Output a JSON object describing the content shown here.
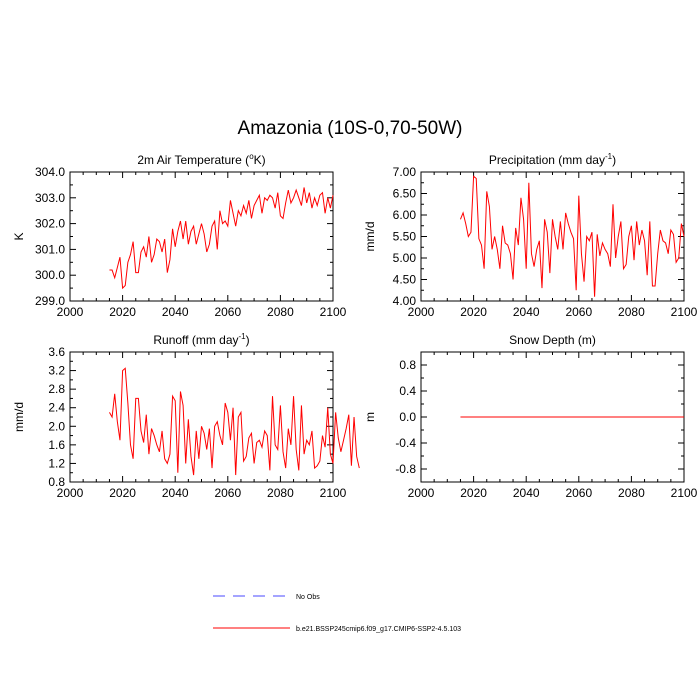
{
  "figure_title": "Amazonia (10S-0,70-50W)",
  "legend": {
    "obs_label": "No Obs",
    "obs_color": "#4a4aff",
    "model_label": "b.e21.BSSP245cmip6.f09_g17.CMIP6-SSP2-4.5.103",
    "model_color": "#ff0000"
  },
  "chart_data": [
    {
      "type": "line",
      "title": "2m Air Temperature (",
      "title_sup": "o",
      "title_tail": "K)",
      "ylabel": "K",
      "xlim": [
        2000,
        2100
      ],
      "ylim": [
        299,
        304
      ],
      "xticks": [
        "2000",
        "2020",
        "2040",
        "2060",
        "2080",
        "2100"
      ],
      "yticks": [
        "299.0",
        "300.0",
        "301.0",
        "302.0",
        "303.0",
        "304.0"
      ],
      "x_start": 2015,
      "values": [
        300.2,
        300.2,
        299.9,
        300.3,
        300.7,
        299.5,
        299.6,
        300.5,
        300.8,
        301.3,
        300.1,
        300.1,
        300.9,
        301.1,
        300.7,
        301.5,
        300.5,
        300.8,
        301.4,
        301.3,
        300.9,
        301.4,
        300.1,
        300.6,
        301.8,
        301.1,
        301.7,
        302.1,
        301.4,
        302.1,
        301.2,
        301.7,
        301.9,
        301.2,
        301.6,
        302.0,
        301.6,
        300.9,
        301.2,
        301.9,
        302.1,
        301.0,
        302.5,
        302.0,
        302.1,
        301.9,
        302.9,
        302.4,
        301.9,
        302.5,
        302.3,
        302.7,
        302.4,
        302.9,
        302.2,
        302.7,
        302.9,
        303.1,
        302.4,
        303.0,
        302.9,
        303.1,
        303.0,
        302.6,
        303.2,
        302.3,
        302.2,
        302.8,
        303.3,
        302.8,
        303.0,
        303.3,
        303.0,
        302.7,
        303.4,
        302.8,
        303.2,
        302.6,
        303.0,
        302.7,
        303.1,
        303.2,
        302.4,
        303.0,
        302.6,
        303.1
      ],
      "color": "#ff0000"
    },
    {
      "type": "line",
      "title": "Precipitation (mm day",
      "title_sup": "-1",
      "title_tail": ")",
      "ylabel": "mm/d",
      "xlim": [
        2000,
        2100
      ],
      "ylim": [
        4.0,
        7.0
      ],
      "xticks": [
        "2000",
        "2020",
        "2040",
        "2060",
        "2080",
        "2100"
      ],
      "yticks": [
        "4.00",
        "4.50",
        "5.00",
        "5.50",
        "6.00",
        "6.50",
        "7.00"
      ],
      "x_start": 2015,
      "values": [
        5.9,
        6.05,
        5.8,
        5.5,
        5.6,
        6.9,
        6.85,
        5.45,
        5.3,
        4.75,
        6.55,
        6.2,
        5.2,
        5.5,
        5.2,
        4.75,
        5.75,
        5.35,
        5.3,
        5.1,
        4.5,
        5.7,
        5.3,
        6.4,
        5.9,
        4.75,
        6.75,
        5.1,
        4.8,
        5.2,
        5.4,
        4.3,
        5.9,
        5.6,
        4.65,
        5.9,
        5.5,
        5.2,
        5.85,
        5.2,
        6.05,
        5.8,
        5.6,
        5.45,
        4.25,
        6.45,
        5.1,
        4.45,
        5.5,
        5.4,
        5.6,
        4.1,
        5.55,
        5.05,
        5.35,
        5.2,
        5.1,
        4.8,
        6.25,
        5.0,
        5.5,
        5.85,
        4.75,
        4.85,
        5.5,
        5.75,
        4.95,
        5.85,
        5.3,
        5.65,
        5.4,
        4.6,
        5.85,
        4.35,
        4.35,
        5.1,
        5.65,
        5.4,
        5.35,
        5.1,
        5.65,
        5.55,
        4.9,
        5.0,
        5.8,
        5.5
      ],
      "color": "#ff0000"
    },
    {
      "type": "line",
      "title": "Runoff (mm day",
      "title_sup": "-1",
      "title_tail": ")",
      "ylabel": "mm/d",
      "xlim": [
        2000,
        2100
      ],
      "ylim": [
        0.8,
        3.6
      ],
      "xticks": [
        "2000",
        "2020",
        "2040",
        "2060",
        "2080",
        "2100"
      ],
      "yticks": [
        "0.8",
        "1.2",
        "1.6",
        "2.0",
        "2.4",
        "2.8",
        "3.2",
        "3.6"
      ],
      "x_start": 2015,
      "values": [
        2.3,
        2.2,
        2.7,
        2.1,
        1.7,
        3.2,
        3.25,
        2.5,
        1.6,
        1.3,
        2.6,
        2.6,
        1.9,
        1.65,
        2.25,
        1.4,
        1.95,
        1.8,
        1.6,
        1.45,
        1.9,
        1.3,
        1.2,
        1.4,
        2.65,
        2.55,
        1.0,
        2.75,
        2.45,
        1.2,
        2.15,
        1.35,
        0.95,
        1.9,
        1.3,
        2.0,
        1.85,
        1.5,
        1.95,
        1.1,
        2.0,
        2.1,
        1.8,
        1.6,
        2.5,
        2.3,
        1.7,
        2.4,
        0.95,
        2.2,
        2.3,
        1.25,
        1.35,
        1.75,
        1.85,
        1.2,
        1.65,
        1.7,
        1.55,
        1.9,
        1.8,
        1.05,
        2.65,
        1.6,
        1.5,
        2.45,
        1.45,
        1.1,
        1.95,
        1.6,
        2.65,
        1.5,
        1.05,
        2.45,
        1.4,
        1.7,
        1.6,
        1.9,
        1.1,
        1.15,
        1.25,
        1.8,
        1.55,
        2.4,
        1.4,
        1.2,
        2.3,
        1.75,
        1.45,
        1.7,
        1.95,
        2.25,
        1.15,
        2.2,
        1.35,
        1.1
      ],
      "color": "#ff0000"
    },
    {
      "type": "line",
      "title": "Snow Depth (m)",
      "title_sup": "",
      "title_tail": "",
      "ylabel": "m",
      "xlim": [
        2000,
        2100
      ],
      "ylim": [
        -1.0,
        1.0
      ],
      "xticks": [
        "2000",
        "2020",
        "2040",
        "2060",
        "2080",
        "2100"
      ],
      "yticks": [
        "-0.8",
        "-0.4",
        "0.0",
        "0.4",
        "0.8"
      ],
      "x_start": 2015,
      "values": [
        0,
        0,
        0,
        0,
        0,
        0,
        0,
        0,
        0,
        0,
        0,
        0,
        0,
        0,
        0,
        0,
        0,
        0,
        0,
        0,
        0,
        0,
        0,
        0,
        0,
        0,
        0,
        0,
        0,
        0,
        0,
        0,
        0,
        0,
        0,
        0,
        0,
        0,
        0,
        0,
        0,
        0,
        0,
        0,
        0,
        0,
        0,
        0,
        0,
        0,
        0,
        0,
        0,
        0,
        0,
        0,
        0,
        0,
        0,
        0,
        0,
        0,
        0,
        0,
        0,
        0,
        0,
        0,
        0,
        0,
        0,
        0,
        0,
        0,
        0,
        0,
        0,
        0,
        0,
        0,
        0,
        0,
        0,
        0,
        0,
        0
      ],
      "color": "#ff0000"
    }
  ]
}
